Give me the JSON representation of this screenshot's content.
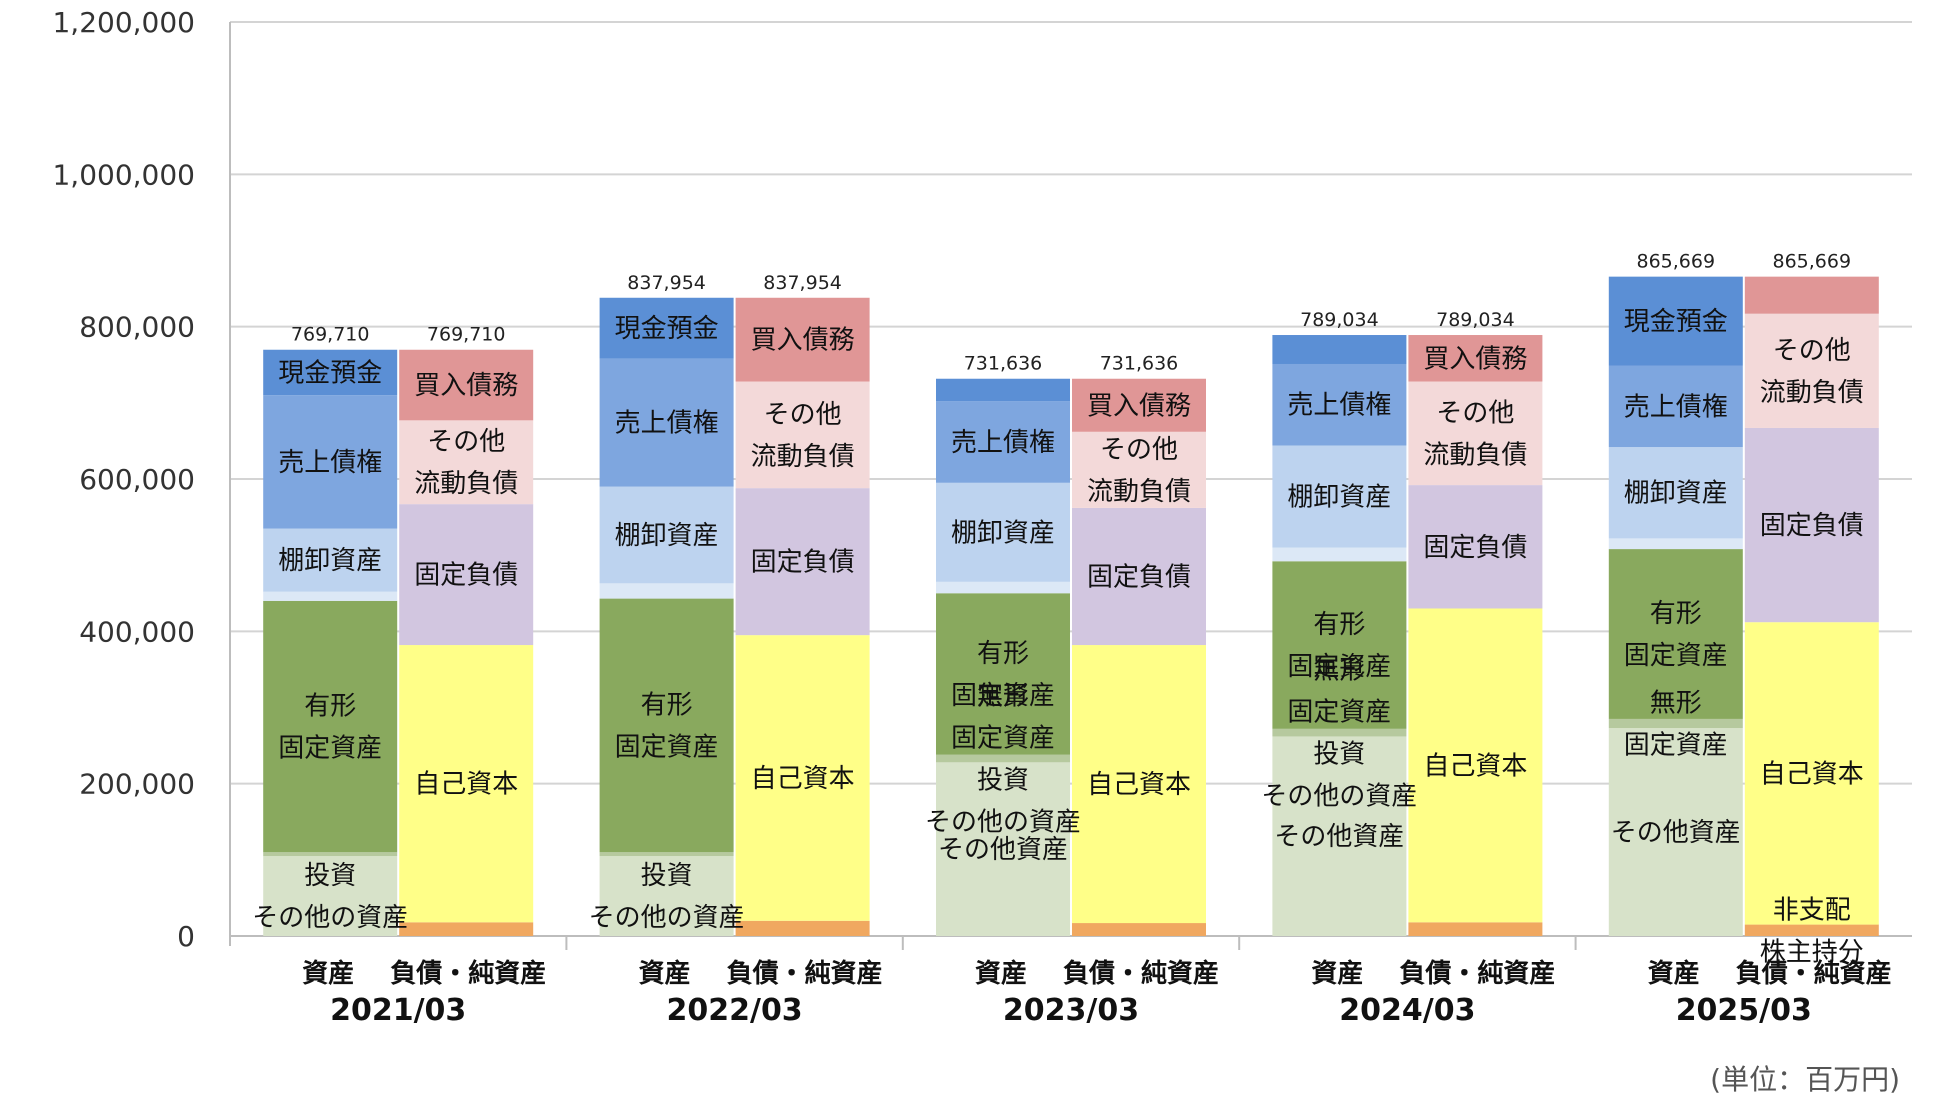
{
  "chart_data": {
    "type": "bar",
    "stacked": true,
    "ylim": [
      0,
      1200000
    ],
    "yticks": [
      0,
      200000,
      400000,
      600000,
      800000,
      1000000,
      1200000
    ],
    "ytick_labels": [
      "0",
      "200,000",
      "400,000",
      "600,000",
      "800,000",
      "1,000,000",
      "1,200,000"
    ],
    "grid": true,
    "unit_note": "(単位：百万円)",
    "bar_group_labels": {
      "assets": "資産",
      "liabilities": "負債・純資産"
    },
    "colors": {
      "cash": "#5b8fd5",
      "receivables": "#7ea6df",
      "inventory": "#bdd3ef",
      "other_current_assets": "#dce8f6",
      "tangible": "#89a95e",
      "intangible": "#b6c99e",
      "investments": "#d7e2c9",
      "payables": "#e09696",
      "other_current_liab": "#f3d9d9",
      "fixed_liab": "#d2c6e0",
      "equity": "#ffff88",
      "nci": "#f0a860"
    },
    "periods": [
      {
        "year": "2021/03",
        "assets_total": "769,710",
        "liabilities_total": "769,710",
        "assets": [
          {
            "key": "investments",
            "value": 105000,
            "label": [
              "投資",
              "その他の資産"
            ]
          },
          {
            "key": "intangible",
            "value": 5000,
            "label": []
          },
          {
            "key": "tangible",
            "value": 330000,
            "label": [
              "有形",
              "固定資産"
            ]
          },
          {
            "key": "other_current_assets",
            "value": 12000,
            "label": []
          },
          {
            "key": "inventory",
            "value": 83000,
            "label": [
              "棚卸資産"
            ]
          },
          {
            "key": "receivables",
            "value": 175000,
            "label": [
              "売上債権"
            ]
          },
          {
            "key": "cash",
            "value": 59710,
            "label": [
              "現金預金"
            ]
          }
        ],
        "liabilities": [
          {
            "key": "nci",
            "value": 18000,
            "label": []
          },
          {
            "key": "equity",
            "value": 364000,
            "label": [
              "自己資本"
            ]
          },
          {
            "key": "fixed_liab",
            "value": 185000,
            "label": [
              "固定負債"
            ]
          },
          {
            "key": "other_current_liab",
            "value": 110000,
            "label": [
              "その他",
              "流動負債"
            ]
          },
          {
            "key": "payables",
            "value": 92710,
            "label": [
              "買入債務"
            ]
          }
        ]
      },
      {
        "year": "2022/03",
        "assets_total": "837,954",
        "liabilities_total": "837,954",
        "assets": [
          {
            "key": "investments",
            "value": 105000,
            "label": [
              "投資",
              "その他の資産"
            ]
          },
          {
            "key": "intangible",
            "value": 5000,
            "label": []
          },
          {
            "key": "tangible",
            "value": 333000,
            "label": [
              "有形",
              "固定資産"
            ]
          },
          {
            "key": "other_current_assets",
            "value": 20000,
            "label": []
          },
          {
            "key": "inventory",
            "value": 127000,
            "label": [
              "棚卸資産"
            ]
          },
          {
            "key": "receivables",
            "value": 168000,
            "label": [
              "売上債権"
            ]
          },
          {
            "key": "cash",
            "value": 79954,
            "label": [
              "現金預金"
            ]
          }
        ],
        "liabilities": [
          {
            "key": "nci",
            "value": 20000,
            "label": []
          },
          {
            "key": "equity",
            "value": 375000,
            "label": [
              "自己資本"
            ]
          },
          {
            "key": "fixed_liab",
            "value": 193000,
            "label": [
              "固定負債"
            ]
          },
          {
            "key": "other_current_liab",
            "value": 140000,
            "label": [
              "その他",
              "流動負債"
            ]
          },
          {
            "key": "payables",
            "value": 109954,
            "label": [
              "買入債務"
            ]
          }
        ]
      },
      {
        "year": "2023/03",
        "assets_total": "731,636",
        "liabilities_total": "731,636",
        "assets": [
          {
            "key": "investments",
            "value": 228000,
            "label": [
              "その他資産"
            ]
          },
          {
            "key": "intangible",
            "value": 10000,
            "label": [
              "無形",
              "固定資産",
              "投資",
              "その他の資産"
            ]
          },
          {
            "key": "tangible",
            "value": 212000,
            "label": [
              "有形",
              "固定資産"
            ]
          },
          {
            "key": "other_current_assets",
            "value": 15000,
            "label": []
          },
          {
            "key": "inventory",
            "value": 130000,
            "label": [
              "棚卸資産"
            ]
          },
          {
            "key": "receivables",
            "value": 107000,
            "label": [
              "売上債権"
            ]
          },
          {
            "key": "cash",
            "value": 29636,
            "label": []
          }
        ],
        "liabilities": [
          {
            "key": "nci",
            "value": 17000,
            "label": []
          },
          {
            "key": "equity",
            "value": 365000,
            "label": [
              "自己資本"
            ]
          },
          {
            "key": "fixed_liab",
            "value": 180000,
            "label": [
              "固定負債"
            ]
          },
          {
            "key": "other_current_liab",
            "value": 100000,
            "label": [
              "その他",
              "流動負債"
            ]
          },
          {
            "key": "payables",
            "value": 69636,
            "label": [
              "買入債務"
            ]
          }
        ]
      },
      {
        "year": "2024/03",
        "assets_total": "789,034",
        "liabilities_total": "789,034",
        "assets": [
          {
            "key": "investments",
            "value": 262000,
            "label": [
              "その他資産"
            ]
          },
          {
            "key": "intangible",
            "value": 10000,
            "label": [
              "無形",
              "固定資産",
              "投資",
              "その他の資産"
            ]
          },
          {
            "key": "tangible",
            "value": 220000,
            "label": [
              "有形",
              "固定資産"
            ]
          },
          {
            "key": "other_current_assets",
            "value": 18000,
            "label": []
          },
          {
            "key": "inventory",
            "value": 134000,
            "label": [
              "棚卸資産"
            ]
          },
          {
            "key": "receivables",
            "value": 107000,
            "label": [
              "売上債権"
            ]
          },
          {
            "key": "cash",
            "value": 38034,
            "label": []
          }
        ],
        "liabilities": [
          {
            "key": "nci",
            "value": 18000,
            "label": []
          },
          {
            "key": "equity",
            "value": 412000,
            "label": [
              "自己資本"
            ]
          },
          {
            "key": "fixed_liab",
            "value": 162000,
            "label": [
              "固定負債"
            ]
          },
          {
            "key": "other_current_liab",
            "value": 136000,
            "label": [
              "その他",
              "流動負債"
            ]
          },
          {
            "key": "payables",
            "value": 61034,
            "label": [
              "買入債務"
            ]
          }
        ]
      },
      {
        "year": "2025/03",
        "assets_total": "865,669",
        "liabilities_total": "865,669",
        "assets": [
          {
            "key": "investments",
            "value": 273000,
            "label": [
              "その他資産"
            ]
          },
          {
            "key": "intangible",
            "value": 12000,
            "label": [
              "無形",
              "固定資産"
            ]
          },
          {
            "key": "tangible",
            "value": 223000,
            "label": [
              "有形",
              "固定資産"
            ]
          },
          {
            "key": "other_current_assets",
            "value": 14000,
            "label": []
          },
          {
            "key": "inventory",
            "value": 120000,
            "label": [
              "棚卸資産"
            ]
          },
          {
            "key": "receivables",
            "value": 107000,
            "label": [
              "売上債権"
            ]
          },
          {
            "key": "cash",
            "value": 116669,
            "label": [
              "現金預金"
            ]
          }
        ],
        "liabilities": [
          {
            "key": "nci",
            "value": 15000,
            "label": [
              "非支配",
              "株主持分"
            ]
          },
          {
            "key": "equity",
            "value": 397000,
            "label": [
              "自己資本"
            ]
          },
          {
            "key": "fixed_liab",
            "value": 255000,
            "label": [
              "固定負債"
            ]
          },
          {
            "key": "other_current_liab",
            "value": 150000,
            "label": [
              "その他",
              "流動負債"
            ]
          },
          {
            "key": "payables",
            "value": 48669,
            "label": []
          }
        ]
      }
    ]
  }
}
